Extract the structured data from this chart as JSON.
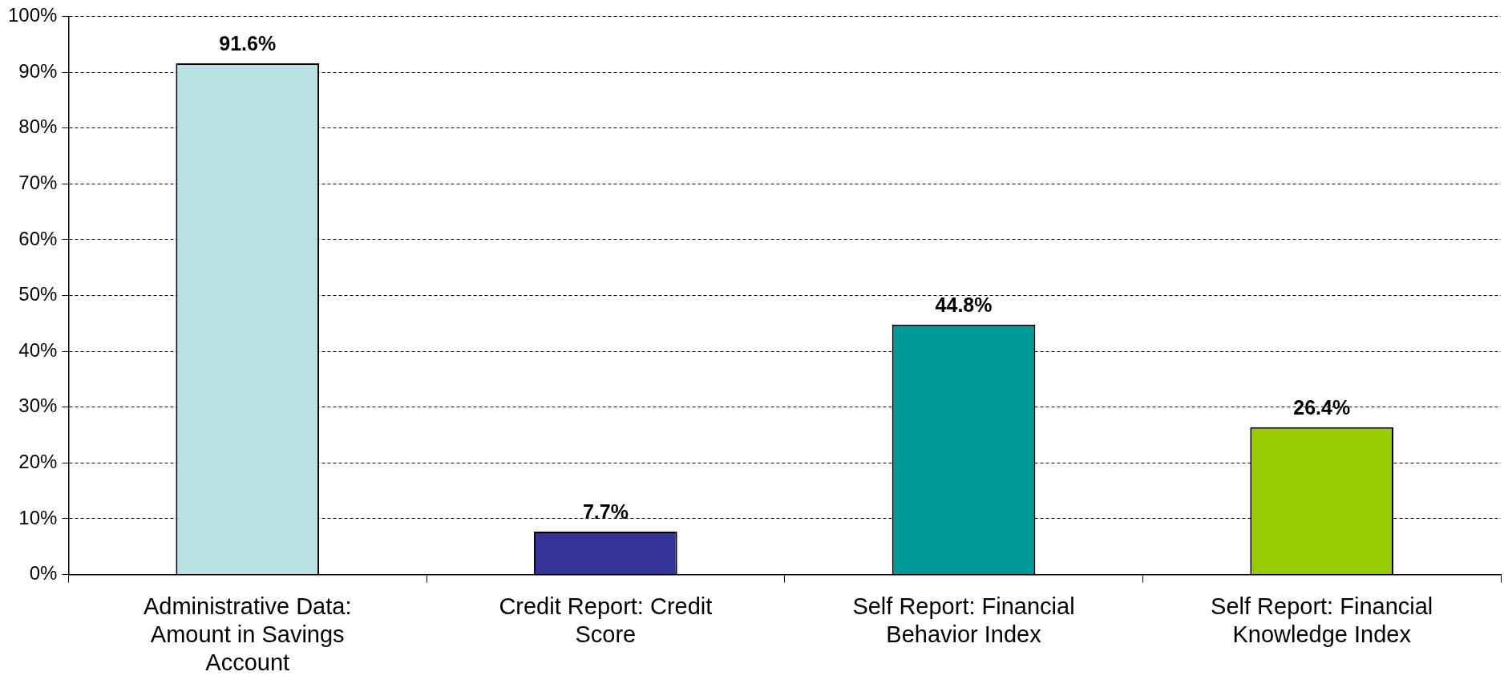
{
  "chart_data": {
    "type": "bar",
    "categories": [
      "Administrative Data: Amount in Savings Account",
      "Credit Report: Credit Score",
      "Self Report: Financial Behavior Index",
      "Self Report: Financial Knowledge Index"
    ],
    "values": [
      91.6,
      7.7,
      44.8,
      26.4
    ],
    "colors": [
      "#b9e0e3",
      "#333399",
      "#009999",
      "#99cc00"
    ],
    "ylim": [
      0,
      100
    ],
    "yticks": [
      {
        "value": 0,
        "label": "0%"
      },
      {
        "value": 10,
        "label": "10%"
      },
      {
        "value": 20,
        "label": "20%"
      },
      {
        "value": 30,
        "label": "30%"
      },
      {
        "value": 40,
        "label": "40%"
      },
      {
        "value": 50,
        "label": "50%"
      },
      {
        "value": 60,
        "label": "60%"
      },
      {
        "value": 70,
        "label": "70%"
      },
      {
        "value": 80,
        "label": "80%"
      },
      {
        "value": 90,
        "label": "90%"
      },
      {
        "value": 100,
        "label": "100%"
      }
    ],
    "value_labels": [
      "91.6%",
      "7.7%",
      "44.8%",
      "26.4%"
    ],
    "grid": "y",
    "legend": false
  }
}
